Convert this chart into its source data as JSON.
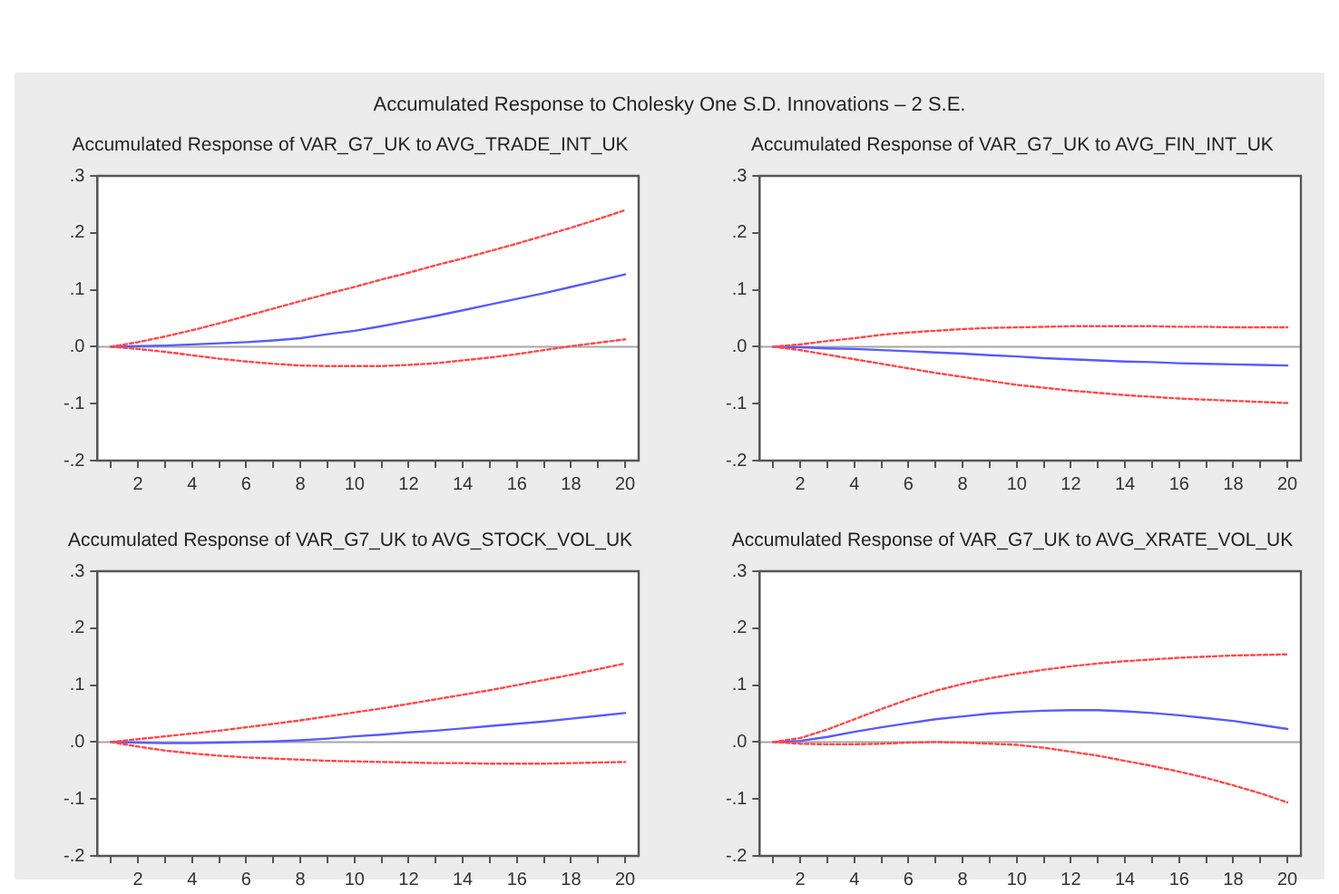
{
  "chart_data": [
    {
      "type": "other",
      "title": "Accumulated Response to Cholesky One S.D. Innovations – 2 S.E."
    },
    {
      "type": "line",
      "title": "Accumulated Response of VAR_G7_UK to AVG_TRADE_INT_UK",
      "x": [
        1,
        2,
        3,
        4,
        5,
        6,
        7,
        8,
        9,
        10,
        11,
        12,
        13,
        14,
        15,
        16,
        17,
        18,
        19,
        20
      ],
      "series": [
        {
          "color": "#5a5aff",
          "line_style": "solid",
          "values": [
            0,
            0.001,
            0.002,
            0.004,
            0.006,
            0.008,
            0.011,
            0.015,
            0.022,
            0.028,
            0.036,
            0.045,
            0.054,
            0.064,
            0.074,
            0.084,
            0.094,
            0.105,
            0.116,
            0.127
          ]
        },
        {
          "color": "#ff4a4a",
          "line_style": "dashed",
          "values": [
            0,
            0.008,
            0.018,
            0.029,
            0.041,
            0.054,
            0.067,
            0.08,
            0.093,
            0.105,
            0.118,
            0.13,
            0.143,
            0.155,
            0.168,
            0.181,
            0.195,
            0.209,
            0.224,
            0.24
          ]
        },
        {
          "color": "#ff4a4a",
          "line_style": "dashed",
          "values": [
            0,
            -0.004,
            -0.009,
            -0.015,
            -0.021,
            -0.026,
            -0.03,
            -0.033,
            -0.034,
            -0.034,
            -0.034,
            -0.032,
            -0.029,
            -0.024,
            -0.019,
            -0.013,
            -0.006,
            0.001,
            0.007,
            0.013
          ]
        }
      ],
      "xlim": [
        0.5,
        20.5
      ],
      "xticks": [
        {
          "value": 1,
          "label": null
        },
        2,
        {
          "value": 3,
          "label": null
        },
        4,
        {
          "value": 5,
          "label": null
        },
        6,
        {
          "value": 7,
          "label": null
        },
        8,
        {
          "value": 9,
          "label": null
        },
        10,
        {
          "value": 11,
          "label": null
        },
        12,
        {
          "value": 13,
          "label": null
        },
        14,
        {
          "value": 15,
          "label": null
        },
        16,
        {
          "value": 17,
          "label": null
        },
        18,
        {
          "value": 19,
          "label": null
        },
        20
      ],
      "ylim": [
        -0.2,
        0.3
      ],
      "yticks": [
        {
          "value": -0.2,
          "label": "-.2"
        },
        {
          "value": -0.1,
          "label": "-.1"
        },
        {
          "value": 0,
          "label": ".0"
        },
        {
          "value": 0.1,
          "label": ".1"
        },
        {
          "value": 0.2,
          "label": ".2"
        },
        {
          "value": 0.3,
          "label": ".3"
        }
      ],
      "ref_lines": [
        {
          "axis": "y",
          "value": 0,
          "color": "#a6a6a6"
        }
      ],
      "marker": "none",
      "grid": false,
      "legend": false
    },
    {
      "type": "line",
      "title": "Accumulated Response of VAR_G7_UK to AVG_FIN_INT_UK",
      "x": [
        1,
        2,
        3,
        4,
        5,
        6,
        7,
        8,
        9,
        10,
        11,
        12,
        13,
        14,
        15,
        16,
        17,
        18,
        19,
        20
      ],
      "series": [
        {
          "color": "#5a5aff",
          "line_style": "solid",
          "values": [
            0,
            -0.001,
            -0.003,
            -0.004,
            -0.006,
            -0.008,
            -0.01,
            -0.012,
            -0.015,
            -0.017,
            -0.02,
            -0.022,
            -0.024,
            -0.026,
            -0.027,
            -0.029,
            -0.03,
            -0.031,
            -0.032,
            -0.033
          ]
        },
        {
          "color": "#ff4a4a",
          "line_style": "dashed",
          "values": [
            0,
            0.004,
            0.01,
            0.015,
            0.021,
            0.025,
            0.028,
            0.031,
            0.033,
            0.034,
            0.035,
            0.036,
            0.036,
            0.036,
            0.036,
            0.035,
            0.035,
            0.034,
            0.034,
            0.034
          ]
        },
        {
          "color": "#ff4a4a",
          "line_style": "dashed",
          "values": [
            0,
            -0.006,
            -0.014,
            -0.022,
            -0.03,
            -0.038,
            -0.046,
            -0.053,
            -0.06,
            -0.067,
            -0.072,
            -0.077,
            -0.081,
            -0.085,
            -0.088,
            -0.091,
            -0.093,
            -0.095,
            -0.097,
            -0.099
          ]
        }
      ],
      "xlim": [
        0.5,
        20.5
      ],
      "xticks": [
        {
          "value": 1,
          "label": null
        },
        2,
        {
          "value": 3,
          "label": null
        },
        4,
        {
          "value": 5,
          "label": null
        },
        6,
        {
          "value": 7,
          "label": null
        },
        8,
        {
          "value": 9,
          "label": null
        },
        10,
        {
          "value": 11,
          "label": null
        },
        12,
        {
          "value": 13,
          "label": null
        },
        14,
        {
          "value": 15,
          "label": null
        },
        16,
        {
          "value": 17,
          "label": null
        },
        18,
        {
          "value": 19,
          "label": null
        },
        20
      ],
      "ylim": [
        -0.2,
        0.3
      ],
      "yticks": [
        {
          "value": -0.2,
          "label": "-.2"
        },
        {
          "value": -0.1,
          "label": "-.1"
        },
        {
          "value": 0,
          "label": ".0"
        },
        {
          "value": 0.1,
          "label": ".1"
        },
        {
          "value": 0.2,
          "label": ".2"
        },
        {
          "value": 0.3,
          "label": ".3"
        }
      ],
      "ref_lines": [
        {
          "axis": "y",
          "value": 0,
          "color": "#a6a6a6"
        }
      ],
      "marker": "none",
      "grid": false,
      "legend": false
    },
    {
      "type": "line",
      "title": "Accumulated Response of VAR_G7_UK to AVG_STOCK_VOL_UK",
      "x": [
        1,
        2,
        3,
        4,
        5,
        6,
        7,
        8,
        9,
        10,
        11,
        12,
        13,
        14,
        15,
        16,
        17,
        18,
        19,
        20
      ],
      "series": [
        {
          "color": "#5a5aff",
          "line_style": "solid",
          "values": [
            0,
            -0.001,
            -0.002,
            -0.002,
            -0.001,
            0,
            0.001,
            0.003,
            0.006,
            0.01,
            0.013,
            0.017,
            0.02,
            0.024,
            0.028,
            0.032,
            0.036,
            0.041,
            0.046,
            0.051
          ]
        },
        {
          "color": "#ff4a4a",
          "line_style": "dashed",
          "values": [
            0,
            0.005,
            0.01,
            0.015,
            0.02,
            0.026,
            0.032,
            0.038,
            0.045,
            0.052,
            0.059,
            0.067,
            0.075,
            0.083,
            0.091,
            0.1,
            0.109,
            0.118,
            0.128,
            0.138
          ]
        },
        {
          "color": "#ff4a4a",
          "line_style": "dashed",
          "values": [
            0,
            -0.008,
            -0.015,
            -0.02,
            -0.024,
            -0.027,
            -0.029,
            -0.031,
            -0.033,
            -0.034,
            -0.035,
            -0.036,
            -0.037,
            -0.037,
            -0.038,
            -0.038,
            -0.038,
            -0.037,
            -0.036,
            -0.035
          ]
        }
      ],
      "xlim": [
        0.5,
        20.5
      ],
      "xticks": [
        {
          "value": 1,
          "label": null
        },
        2,
        {
          "value": 3,
          "label": null
        },
        4,
        {
          "value": 5,
          "label": null
        },
        6,
        {
          "value": 7,
          "label": null
        },
        8,
        {
          "value": 9,
          "label": null
        },
        10,
        {
          "value": 11,
          "label": null
        },
        12,
        {
          "value": 13,
          "label": null
        },
        14,
        {
          "value": 15,
          "label": null
        },
        16,
        {
          "value": 17,
          "label": null
        },
        18,
        {
          "value": 19,
          "label": null
        },
        20
      ],
      "ylim": [
        -0.2,
        0.3
      ],
      "yticks": [
        {
          "value": -0.2,
          "label": "-.2"
        },
        {
          "value": -0.1,
          "label": "-.1"
        },
        {
          "value": 0,
          "label": ".0"
        },
        {
          "value": 0.1,
          "label": ".1"
        },
        {
          "value": 0.2,
          "label": ".2"
        },
        {
          "value": 0.3,
          "label": ".3"
        }
      ],
      "ref_lines": [
        {
          "axis": "y",
          "value": 0,
          "color": "#a6a6a6"
        }
      ],
      "marker": "none",
      "grid": false,
      "legend": false
    },
    {
      "type": "line",
      "title": "Accumulated Response of VAR_G7_UK to AVG_XRATE_VOL_UK",
      "x": [
        1,
        2,
        3,
        4,
        5,
        6,
        7,
        8,
        9,
        10,
        11,
        12,
        13,
        14,
        15,
        16,
        17,
        18,
        19,
        20
      ],
      "series": [
        {
          "color": "#5a5aff",
          "line_style": "solid",
          "values": [
            0,
            0.002,
            0.009,
            0.018,
            0.026,
            0.033,
            0.04,
            0.045,
            0.05,
            0.053,
            0.055,
            0.056,
            0.056,
            0.054,
            0.051,
            0.047,
            0.042,
            0.037,
            0.03,
            0.023
          ]
        },
        {
          "color": "#ff4a4a",
          "line_style": "dashed",
          "values": [
            0,
            0.007,
            0.022,
            0.04,
            0.058,
            0.075,
            0.09,
            0.102,
            0.112,
            0.12,
            0.127,
            0.133,
            0.138,
            0.142,
            0.145,
            0.148,
            0.15,
            0.152,
            0.153,
            0.154
          ]
        },
        {
          "color": "#ff4a4a",
          "line_style": "dashed",
          "values": [
            0,
            -0.003,
            -0.004,
            -0.004,
            -0.003,
            -0.001,
            0,
            -0.001,
            -0.003,
            -0.005,
            -0.01,
            -0.017,
            -0.024,
            -0.033,
            -0.042,
            -0.052,
            -0.063,
            -0.076,
            -0.09,
            -0.106
          ]
        }
      ],
      "xlim": [
        0.5,
        20.5
      ],
      "xticks": [
        {
          "value": 1,
          "label": null
        },
        2,
        {
          "value": 3,
          "label": null
        },
        4,
        {
          "value": 5,
          "label": null
        },
        6,
        {
          "value": 7,
          "label": null
        },
        8,
        {
          "value": 9,
          "label": null
        },
        10,
        {
          "value": 11,
          "label": null
        },
        12,
        {
          "value": 13,
          "label": null
        },
        14,
        {
          "value": 15,
          "label": null
        },
        16,
        {
          "value": 17,
          "label": null
        },
        18,
        {
          "value": 19,
          "label": null
        },
        20
      ],
      "ylim": [
        -0.2,
        0.3
      ],
      "yticks": [
        {
          "value": -0.2,
          "label": "-.2"
        },
        {
          "value": -0.1,
          "label": "-.1"
        },
        {
          "value": 0,
          "label": ".0"
        },
        {
          "value": 0.1,
          "label": ".1"
        },
        {
          "value": 0.2,
          "label": ".2"
        },
        {
          "value": 0.3,
          "label": ".3"
        }
      ],
      "ref_lines": [
        {
          "axis": "y",
          "value": 0,
          "color": "#a6a6a6"
        }
      ],
      "marker": "none",
      "grid": false,
      "legend": false
    }
  ]
}
